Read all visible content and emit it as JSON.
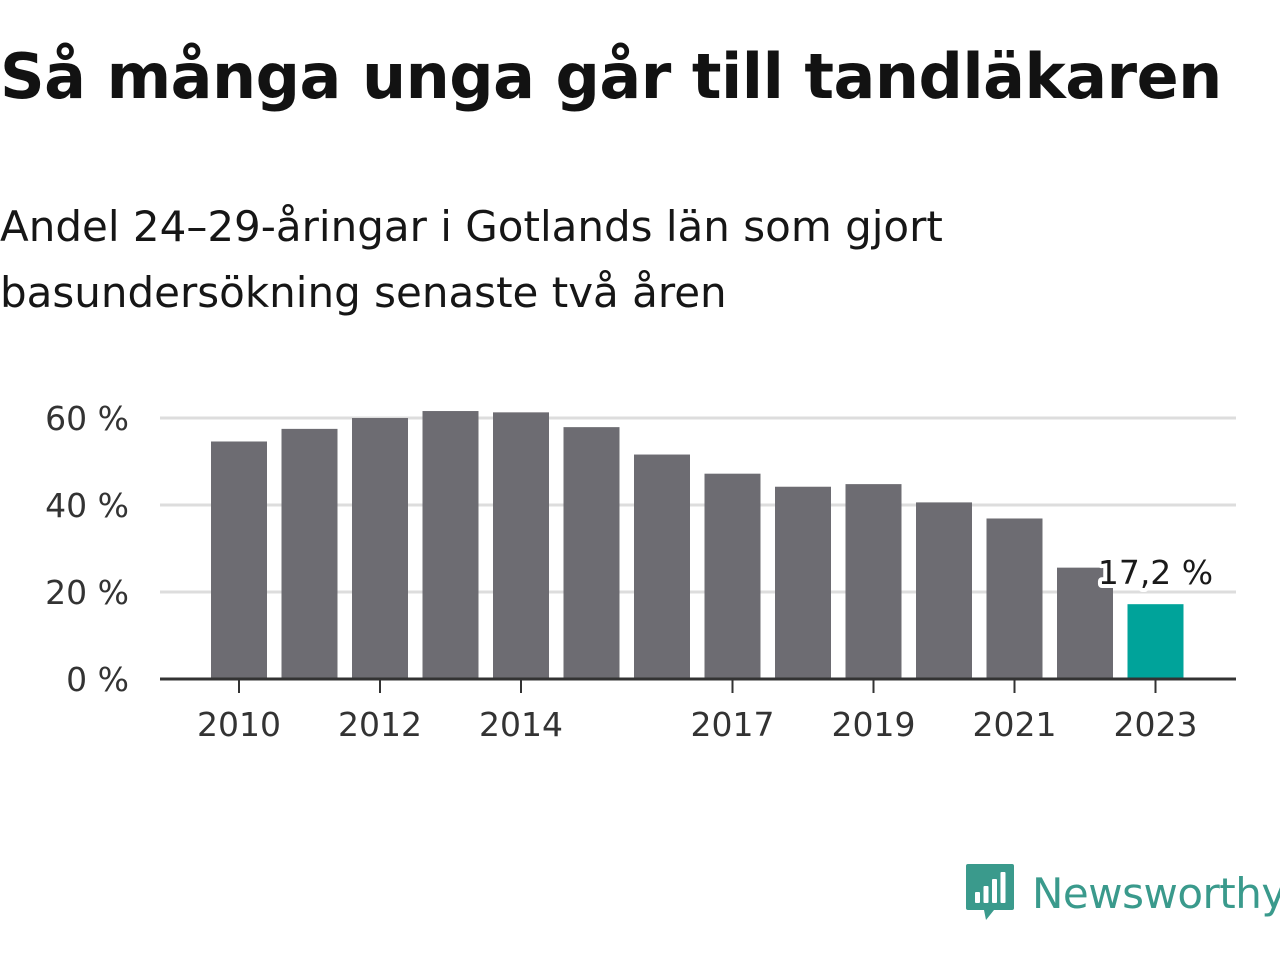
{
  "title": "Så många unga går till tandläkaren",
  "subtitle": "Andel 24–29-åringar i Gotlands län som gjort basundersökning senaste två åren",
  "brand": {
    "name": "Newsworthy",
    "logo_icon": "newsworthy-bar-chart-icon",
    "color": "#3a9a8c"
  },
  "chart_data": {
    "type": "bar",
    "categories": [
      "2010",
      "2011",
      "2012",
      "2013",
      "2014",
      "2015",
      "2016",
      "2017",
      "2018",
      "2019",
      "2020",
      "2021",
      "2022",
      "2023"
    ],
    "values": [
      54.6,
      57.5,
      60.0,
      61.6,
      61.3,
      57.9,
      51.6,
      47.2,
      44.2,
      44.8,
      40.6,
      36.9,
      25.6,
      17.2
    ],
    "x_tick_labels": [
      "2010",
      "2012",
      "2014",
      "2017",
      "2019",
      "2021",
      "2023"
    ],
    "y_ticks": [
      0,
      20,
      40,
      60
    ],
    "y_tick_labels": [
      "0 %",
      "20 %",
      "40 %",
      "60 %"
    ],
    "ylim": [
      0,
      60
    ],
    "grid": true,
    "highlight": {
      "category": "2023",
      "label": "17,2 %"
    },
    "colors": {
      "bar": "#6d6c72",
      "highlight": "#00a39a",
      "grid": "#dddddd",
      "axis": "#333333"
    }
  }
}
